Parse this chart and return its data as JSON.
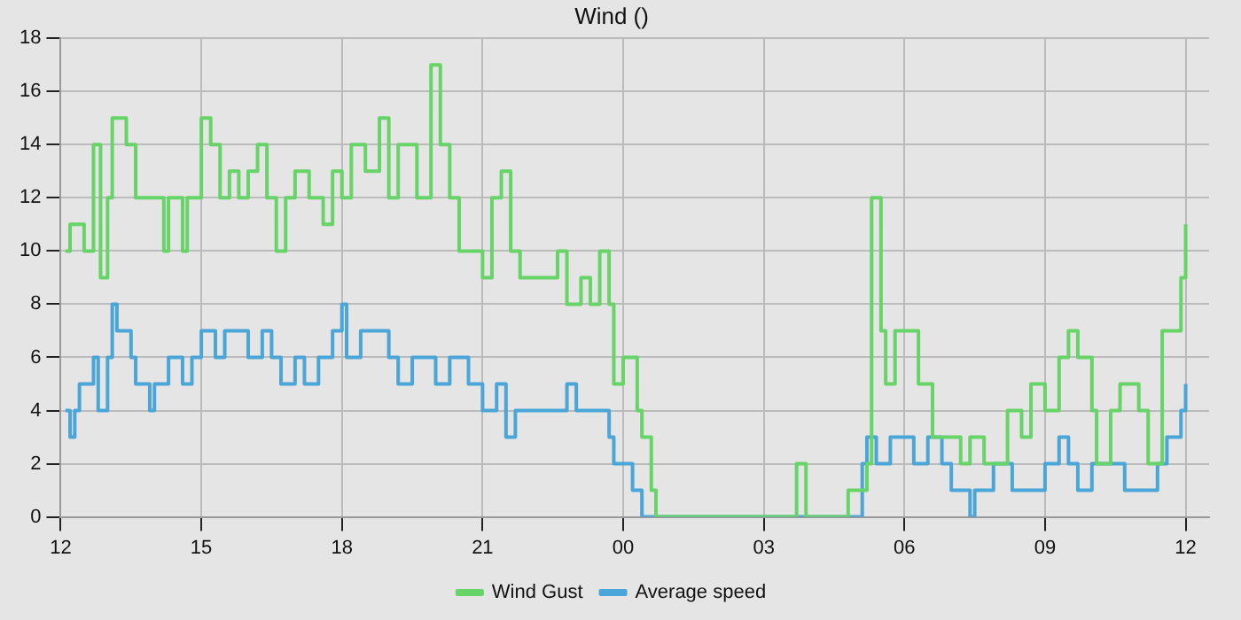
{
  "chart_data": {
    "type": "step",
    "title": "Wind ()",
    "legend": "bottom",
    "grid": true,
    "marker": "none",
    "xlim": [
      12,
      36.5
    ],
    "xticks": [
      {
        "value": 12,
        "label": "12"
      },
      {
        "value": 15,
        "label": "15"
      },
      {
        "value": 18,
        "label": "18"
      },
      {
        "value": 21,
        "label": "21"
      },
      {
        "value": 24,
        "label": "00"
      },
      {
        "value": 27,
        "label": "03"
      },
      {
        "value": 30,
        "label": "06"
      },
      {
        "value": 33,
        "label": "09"
      },
      {
        "value": 36,
        "label": "12"
      }
    ],
    "ylim": [
      0,
      18
    ],
    "yticks": [
      0,
      2,
      4,
      6,
      8,
      10,
      12,
      14,
      16,
      18
    ],
    "series": [
      {
        "name": "Wind Gust",
        "color": "#66d466",
        "x": [
          12.1,
          12.2,
          12.5,
          12.7,
          12.85,
          13.0,
          13.1,
          13.4,
          13.6,
          14.2,
          14.3,
          14.6,
          14.7,
          15.0,
          15.2,
          15.4,
          15.6,
          15.8,
          16.0,
          16.2,
          16.4,
          16.6,
          16.8,
          17.0,
          17.3,
          17.6,
          17.8,
          18.0,
          18.2,
          18.5,
          18.8,
          19.0,
          19.2,
          19.6,
          19.9,
          20.1,
          20.3,
          20.5,
          21.0,
          21.2,
          21.4,
          21.6,
          21.8,
          22.4,
          22.6,
          22.8,
          23.1,
          23.3,
          23.5,
          23.7,
          23.8,
          24.0,
          24.3,
          24.4,
          24.6,
          24.7,
          27.7,
          27.9,
          28.8,
          29.2,
          29.3,
          29.5,
          29.6,
          29.8,
          30.3,
          30.6,
          31.2,
          31.4,
          31.7,
          32.2,
          32.5,
          32.7,
          33.0,
          33.3,
          33.5,
          33.7,
          34.0,
          34.1,
          34.4,
          34.6,
          35.0,
          35.2,
          35.5,
          35.9,
          36.0
        ],
        "values": [
          10,
          11,
          10,
          14,
          9,
          12,
          15,
          14,
          12,
          10,
          12,
          10,
          12,
          15,
          14,
          12,
          13,
          12,
          13,
          14,
          12,
          10,
          12,
          13,
          12,
          11,
          13,
          12,
          14,
          13,
          15,
          12,
          14,
          12,
          17,
          14,
          12,
          10,
          9,
          12,
          13,
          10,
          9,
          9,
          10,
          8,
          9,
          8,
          10,
          8,
          5,
          6,
          4,
          3,
          1,
          0,
          2,
          0,
          1,
          2,
          12,
          7,
          5,
          7,
          5,
          3,
          2,
          3,
          2,
          4,
          3,
          5,
          4,
          6,
          7,
          6,
          4,
          2,
          4,
          5,
          4,
          2,
          7,
          9,
          11
        ]
      },
      {
        "name": "Average speed",
        "color": "#4aa6d8",
        "x": [
          12.1,
          12.2,
          12.3,
          12.4,
          12.7,
          12.8,
          13.0,
          13.1,
          13.2,
          13.5,
          13.6,
          13.9,
          14.0,
          14.3,
          14.6,
          14.8,
          15.0,
          15.3,
          15.5,
          16.0,
          16.3,
          16.5,
          16.7,
          17.0,
          17.2,
          17.5,
          17.8,
          18.0,
          18.1,
          18.4,
          19.0,
          19.2,
          19.5,
          20.0,
          20.3,
          20.7,
          21.0,
          21.3,
          21.5,
          21.7,
          22.6,
          22.8,
          23.0,
          23.7,
          23.8,
          24.2,
          24.4,
          29.1,
          29.2,
          29.4,
          29.7,
          30.2,
          30.5,
          30.8,
          31.0,
          31.4,
          31.5,
          31.9,
          32.3,
          33.0,
          33.3,
          33.5,
          33.7,
          34.0,
          34.7,
          35.4,
          35.6,
          35.9,
          36.0
        ],
        "values": [
          4,
          3,
          4,
          5,
          6,
          4,
          6,
          8,
          7,
          6,
          5,
          4,
          5,
          6,
          5,
          6,
          7,
          6,
          7,
          6,
          7,
          6,
          5,
          6,
          5,
          6,
          7,
          8,
          6,
          7,
          6,
          5,
          6,
          5,
          6,
          5,
          4,
          5,
          3,
          4,
          4,
          5,
          4,
          3,
          2,
          1,
          0,
          2,
          3,
          2,
          3,
          2,
          3,
          2,
          1,
          0,
          1,
          2,
          1,
          2,
          3,
          2,
          1,
          2,
          1,
          2,
          3,
          4,
          5
        ]
      }
    ]
  }
}
